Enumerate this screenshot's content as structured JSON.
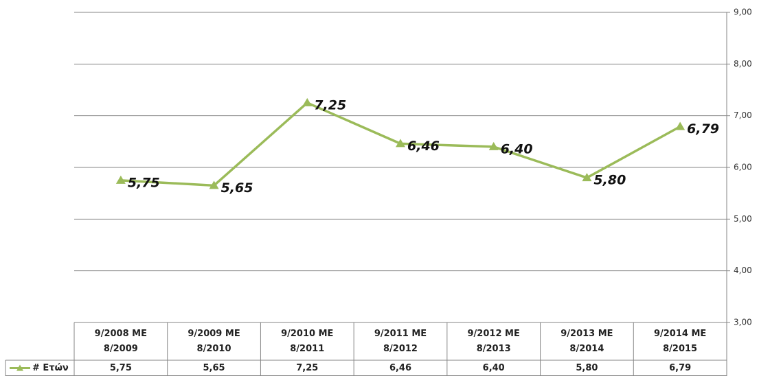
{
  "chart_data": {
    "type": "line",
    "categories": [
      "9/2008 ΜΕ 8/2009",
      "9/2009 ΜΕ 8/2010",
      "9/2010 ΜΕ 8/2011",
      "9/2011 ΜΕ 8/2012",
      "9/2012 ΜΕ 8/2013",
      "9/2013 ΜΕ 8/2014",
      "9/2014 ΜΕ 8/2015"
    ],
    "series": [
      {
        "name": "# Ετών",
        "color": "#9bbb59",
        "values": [
          5.75,
          5.65,
          7.25,
          6.46,
          6.4,
          5.8,
          6.79
        ],
        "value_labels": [
          "5,75",
          "5,65",
          "7,25",
          "6,46",
          "6,40",
          "5,80",
          "6,79"
        ]
      }
    ],
    "ylim": [
      3,
      9
    ],
    "yticks": [
      {
        "value": 3,
        "label": "3,00"
      },
      {
        "value": 4,
        "label": "4,00"
      },
      {
        "value": 5,
        "label": "5,00"
      },
      {
        "value": 6,
        "label": "6,00"
      },
      {
        "value": 7,
        "label": "7,00"
      },
      {
        "value": 8,
        "label": "8,00"
      },
      {
        "value": 9,
        "label": "9,00"
      }
    ],
    "grid": true,
    "y_axis_side": "right",
    "data_table": true
  }
}
